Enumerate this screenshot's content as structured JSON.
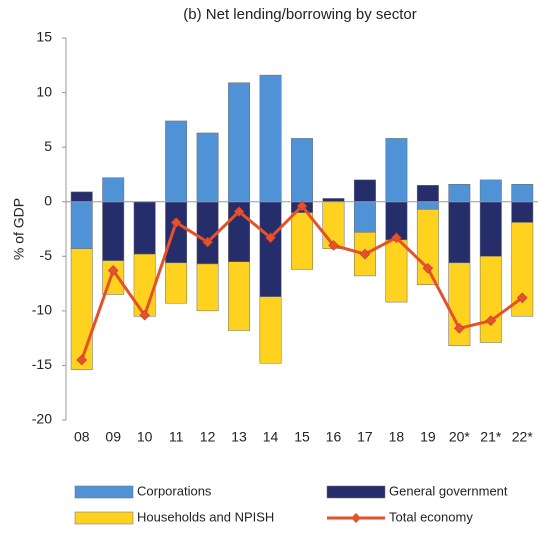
{
  "chart_data": {
    "type": "bar",
    "title": "(b) Net lending/borrowing by sector",
    "y_label": "% of GDP",
    "categories": [
      "08",
      "09",
      "10",
      "11",
      "12",
      "13",
      "14",
      "15",
      "16",
      "17",
      "18",
      "19",
      "20*",
      "21*",
      "22*"
    ],
    "series": [
      {
        "name": "Corporations",
        "color": "#4f93d6",
        "values": [
          -4.3,
          2.2,
          0,
          7.4,
          6.3,
          10.9,
          11.6,
          5.8,
          0,
          -2.8,
          5.8,
          -0.7,
          1.6,
          2.0,
          1.6
        ]
      },
      {
        "name": "General government",
        "color": "#262d6b",
        "values": [
          0.9,
          -5.4,
          -4.8,
          -5.6,
          -5.7,
          -5.5,
          -8.7,
          -1.0,
          0.3,
          2.0,
          -3.5,
          1.5,
          -5.6,
          -5.0,
          -1.9
        ]
      },
      {
        "name": "Households and NPISH",
        "color": "#ffd21f",
        "values": [
          -11.1,
          -3.1,
          -5.7,
          -3.7,
          -4.3,
          -6.3,
          -6.1,
          -5.2,
          -4.3,
          -4.0,
          -5.7,
          -6.9,
          -7.6,
          -7.9,
          -8.6
        ]
      },
      {
        "name": "Total economy",
        "type": "line",
        "color": "#e5522a",
        "values": [
          -14.5,
          -6.3,
          -10.4,
          -1.9,
          -3.7,
          -0.9,
          -3.3,
          -0.4,
          -4.0,
          -4.8,
          -3.3,
          -6.1,
          -11.6,
          -10.9,
          -8.8
        ]
      }
    ],
    "stacked": true,
    "ylim": [
      -20,
      15
    ],
    "yticks": [
      -20,
      -15,
      -10,
      -5,
      0,
      5,
      10,
      15
    ]
  }
}
